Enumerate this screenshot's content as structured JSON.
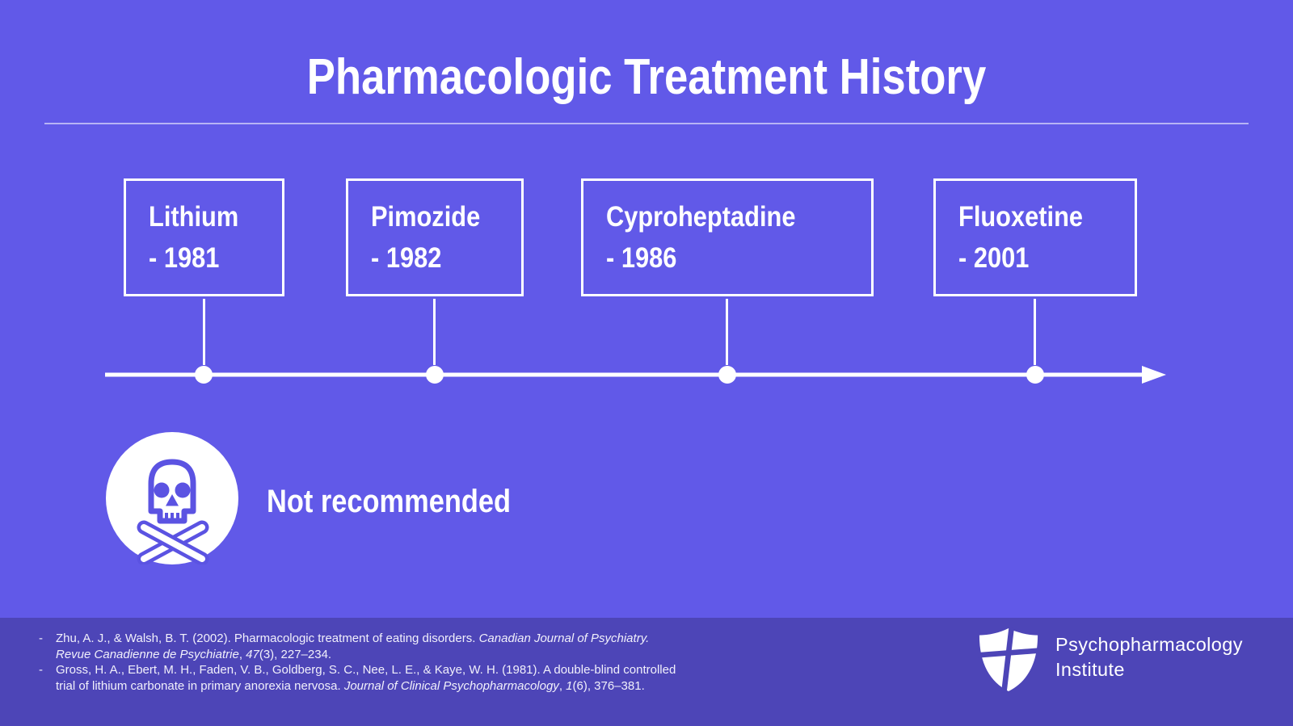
{
  "slide": {
    "title": "Pharmacologic Treatment History",
    "timeline": {
      "items": [
        {
          "name": "Lithium",
          "year": "- 1981"
        },
        {
          "name": "Pimozide",
          "year": "- 1982"
        },
        {
          "name": "Cyproheptadine",
          "year": "- 1986"
        },
        {
          "name": "Fluoxetine",
          "year": "- 2001"
        }
      ]
    },
    "warning": {
      "icon": "skull-crossbones-icon",
      "label": "Not recommended"
    },
    "footer": {
      "bullet": "-",
      "references": [
        {
          "segments": [
            {
              "text": "Zhu, A. J., & Walsh, B. T. (2002). Pharmacologic treatment of eating disorders. ",
              "italic": false
            },
            {
              "text": "Canadian Journal of Psychiatry. Revue Canadienne de Psychiatrie",
              "italic": true
            },
            {
              "text": ", ",
              "italic": false
            },
            {
              "text": "47",
              "italic": true
            },
            {
              "text": "(3), 227–234.",
              "italic": false
            }
          ]
        },
        {
          "segments": [
            {
              "text": "Gross, H. A., Ebert, M. H., Faden, V. B., Goldberg, S. C., Nee, L. E., & Kaye, W. H. (1981). A double-blind controlled trial of lithium carbonate in primary anorexia nervosa. ",
              "italic": false
            },
            {
              "text": "Journal of Clinical Psychopharmacology",
              "italic": true
            },
            {
              "text": ", ",
              "italic": false
            },
            {
              "text": "1",
              "italic": true
            },
            {
              "text": "(6), 376–381.",
              "italic": false
            }
          ]
        }
      ],
      "logo": {
        "icon": "shield-icon",
        "line1": "Psychopharmacology",
        "line2": "Institute"
      }
    },
    "colors": {
      "background": "#6159e8",
      "footer_background": "#4d45b7",
      "accent_white": "#ffffff",
      "icon_purple": "#5b53e2"
    }
  }
}
